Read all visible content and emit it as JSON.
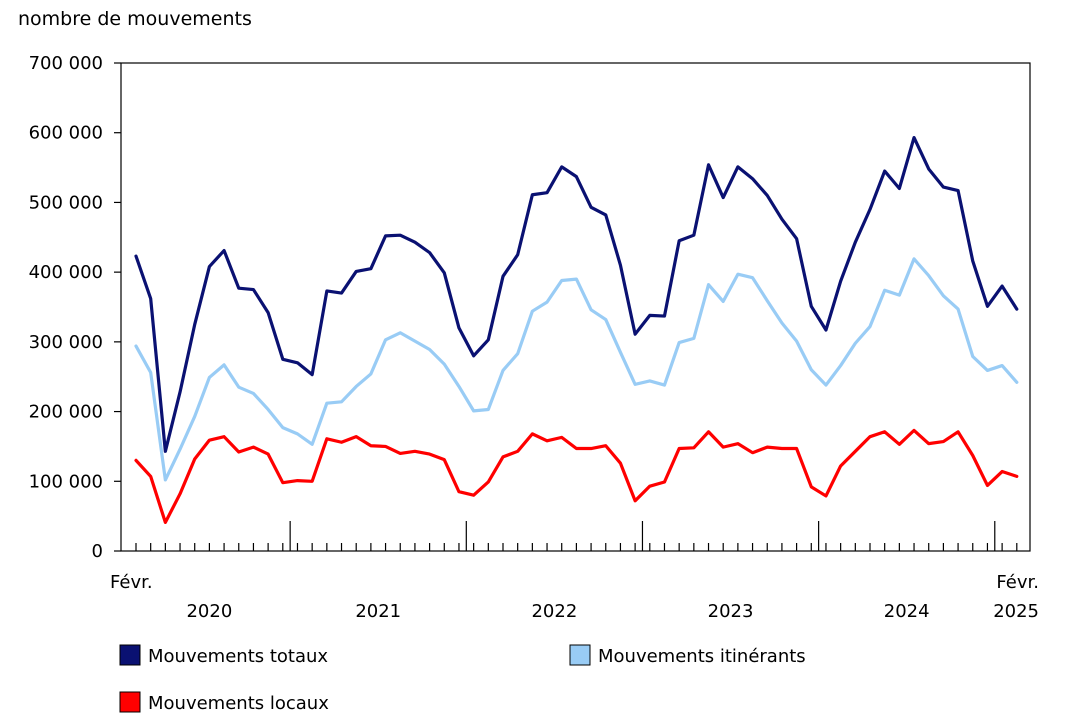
{
  "chart_data": {
    "type": "line",
    "title": "",
    "ylabel": "nombre de mouvements",
    "xlabel": "",
    "ylim": [
      0,
      700000
    ],
    "y_ticks": [
      0,
      100000,
      200000,
      300000,
      400000,
      500000,
      600000,
      700000
    ],
    "y_tick_labels": [
      "0",
      "100 000",
      "200 000",
      "300 000",
      "400 000",
      "500 000",
      "600 000",
      "700 000"
    ],
    "grid": false,
    "x_start_label": "Févr.",
    "x_end_label": "Févr.",
    "year_labels": [
      "2020",
      "2021",
      "2022",
      "2023",
      "2024",
      "2025"
    ],
    "x_period": "Février 2020 à février 2025 (mensuel)",
    "series": [
      {
        "name": "Mouvements totaux",
        "color": "#0a1172",
        "values": [
          423000,
          362000,
          143000,
          228000,
          325000,
          408000,
          431000,
          377000,
          375000,
          342000,
          275000,
          270000,
          253000,
          373000,
          370000,
          401000,
          405000,
          452000,
          453000,
          443000,
          428000,
          399000,
          320000,
          280000,
          303000,
          394000,
          425000,
          511000,
          514000,
          551000,
          537000,
          493000,
          482000,
          410000,
          311000,
          338000,
          337000,
          445000,
          453000,
          554000,
          507000,
          551000,
          534000,
          510000,
          476000,
          448000,
          351000,
          317000,
          387000,
          443000,
          490000,
          545000,
          520000,
          593000,
          548000,
          522000,
          517000,
          416000,
          351000,
          380000,
          347000
        ]
      },
      {
        "name": "Mouvements itinérants",
        "color": "#99ccf5",
        "values": [
          294000,
          256000,
          102000,
          146000,
          193000,
          249000,
          267000,
          235000,
          226000,
          203000,
          177000,
          168000,
          153000,
          212000,
          214000,
          236000,
          254000,
          303000,
          313000,
          301000,
          289000,
          268000,
          236000,
          201000,
          203000,
          259000,
          283000,
          344000,
          357000,
          388000,
          390000,
          346000,
          332000,
          285000,
          239000,
          244000,
          238000,
          299000,
          305000,
          382000,
          358000,
          397000,
          392000,
          359000,
          327000,
          301000,
          260000,
          238000,
          266000,
          298000,
          322000,
          374000,
          367000,
          419000,
          395000,
          366000,
          347000,
          279000,
          259000,
          266000,
          242000
        ]
      },
      {
        "name": "Mouvements locaux",
        "color": "#ff0000",
        "values": [
          130000,
          107000,
          41000,
          82000,
          132000,
          159000,
          164000,
          142000,
          149000,
          139000,
          98000,
          101000,
          100000,
          161000,
          156000,
          164000,
          151000,
          150000,
          140000,
          143000,
          139000,
          131000,
          85000,
          80000,
          99000,
          135000,
          143000,
          168000,
          158000,
          163000,
          147000,
          147000,
          151000,
          126000,
          72000,
          93000,
          99000,
          147000,
          148000,
          171000,
          149000,
          154000,
          141000,
          149000,
          147000,
          147000,
          92000,
          79000,
          122000,
          143000,
          164000,
          171000,
          153000,
          173000,
          154000,
          157000,
          171000,
          137000,
          94000,
          114000,
          107000
        ]
      }
    ],
    "legend": [
      {
        "label": "Mouvements totaux",
        "color": "#0a1172"
      },
      {
        "label": "Mouvements itinérants",
        "color": "#99ccf5"
      },
      {
        "label": "Mouvements locaux",
        "color": "#ff0000"
      }
    ],
    "legend_position": "bottom"
  }
}
